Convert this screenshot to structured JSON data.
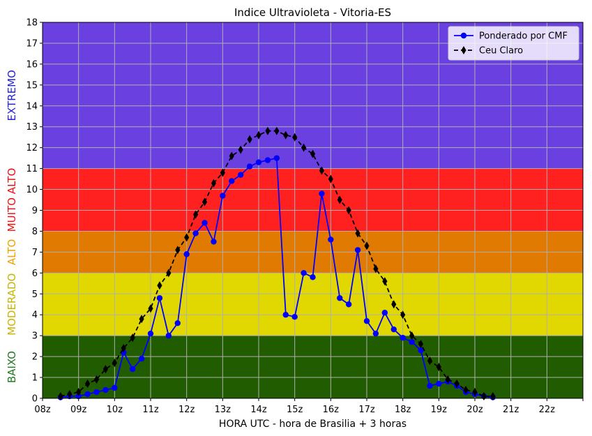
{
  "chart_data": {
    "type": "line",
    "title": "Indice Ultravioleta - Vitoria-ES",
    "xlabel": "HORA UTC - hora de Brasilia + 3 horas",
    "ylabel": "",
    "xlim": [
      8,
      23
    ],
    "ylim": [
      0,
      18
    ],
    "yticks": [
      0,
      1,
      2,
      3,
      4,
      5,
      6,
      7,
      8,
      9,
      10,
      11,
      12,
      13,
      14,
      15,
      16,
      17,
      18
    ],
    "xticks": [
      {
        "value": 8,
        "label": "08z"
      },
      {
        "value": 9,
        "label": "09z"
      },
      {
        "value": 10,
        "label": "10z"
      },
      {
        "value": 11,
        "label": "11z"
      },
      {
        "value": 12,
        "label": "12z"
      },
      {
        "value": 13,
        "label": "13z"
      },
      {
        "value": 14,
        "label": "14z"
      },
      {
        "value": 15,
        "label": "15z"
      },
      {
        "value": 16,
        "label": "16z"
      },
      {
        "value": 17,
        "label": "17z"
      },
      {
        "value": 18,
        "label": "18z"
      },
      {
        "value": 19,
        "label": "19z"
      },
      {
        "value": 20,
        "label": "20z"
      },
      {
        "value": 21,
        "label": "21z"
      },
      {
        "value": 22,
        "label": "22z"
      },
      {
        "value": 23,
        "label": ""
      }
    ],
    "grid": true,
    "legend_position": "top-right",
    "bands": [
      {
        "label": "BAIXO",
        "from": 0,
        "to": 3,
        "color": "#215c00",
        "text_color": "#1f7a1f"
      },
      {
        "label": "MODERADO",
        "from": 3,
        "to": 6,
        "color": "#e0d800",
        "text_color": "#c8b400"
      },
      {
        "label": "ALTO",
        "from": 6,
        "to": 8,
        "color": "#e07a00",
        "text_color": "#f0a000"
      },
      {
        "label": "MUITO ALTO",
        "from": 8,
        "to": 11,
        "color": "#ff2020",
        "text_color": "#ee1111"
      },
      {
        "label": "EXTREMO",
        "from": 11,
        "to": 18,
        "color": "#6a40e0",
        "text_color": "#2222dd"
      }
    ],
    "series": [
      {
        "name": "Ponderado por CMF",
        "color": "#0000ff",
        "marker": "circle",
        "line_style": "solid",
        "x": [
          8.5,
          8.75,
          9.0,
          9.25,
          9.5,
          9.75,
          10.0,
          10.25,
          10.5,
          10.75,
          11.0,
          11.25,
          11.5,
          11.75,
          12.0,
          12.25,
          12.5,
          12.75,
          13.0,
          13.25,
          13.5,
          13.75,
          14.0,
          14.25,
          14.5,
          14.75,
          15.0,
          15.25,
          15.5,
          15.75,
          16.0,
          16.25,
          16.5,
          16.75,
          17.0,
          17.25,
          17.5,
          17.75,
          18.0,
          18.25,
          18.5,
          18.75,
          19.0,
          19.25,
          19.5,
          19.75,
          20.0,
          20.25,
          20.5
        ],
        "y": [
          0.05,
          0.1,
          0.1,
          0.2,
          0.3,
          0.4,
          0.5,
          2.2,
          1.4,
          1.9,
          3.1,
          4.8,
          3.0,
          3.6,
          6.9,
          7.9,
          8.4,
          7.5,
          9.7,
          10.4,
          10.7,
          11.1,
          11.3,
          11.4,
          11.5,
          4.0,
          3.9,
          6.0,
          5.8,
          9.8,
          7.6,
          4.8,
          4.5,
          7.1,
          3.7,
          3.1,
          4.1,
          3.3,
          2.9,
          2.7,
          2.3,
          0.6,
          0.7,
          0.8,
          0.6,
          0.3,
          0.2,
          0.1,
          0.05
        ]
      },
      {
        "name": "Ceu Claro",
        "color": "#000000",
        "marker": "diamond",
        "line_style": "dashed",
        "x": [
          8.5,
          8.75,
          9.0,
          9.25,
          9.5,
          9.75,
          10.0,
          10.25,
          10.5,
          10.75,
          11.0,
          11.25,
          11.5,
          11.75,
          12.0,
          12.25,
          12.5,
          12.75,
          13.0,
          13.25,
          13.5,
          13.75,
          14.0,
          14.25,
          14.5,
          14.75,
          15.0,
          15.25,
          15.5,
          15.75,
          16.0,
          16.25,
          16.5,
          16.75,
          17.0,
          17.25,
          17.5,
          17.75,
          18.0,
          18.25,
          18.5,
          18.75,
          19.0,
          19.25,
          19.5,
          19.75,
          20.0,
          20.25,
          20.5
        ],
        "y": [
          0.1,
          0.2,
          0.3,
          0.7,
          0.9,
          1.4,
          1.7,
          2.4,
          2.9,
          3.8,
          4.3,
          5.4,
          6.0,
          7.1,
          7.7,
          8.8,
          9.4,
          10.3,
          10.8,
          11.6,
          11.9,
          12.4,
          12.6,
          12.8,
          12.8,
          12.6,
          12.5,
          12.0,
          11.7,
          10.9,
          10.5,
          9.5,
          9.0,
          7.9,
          7.3,
          6.2,
          5.6,
          4.5,
          4.0,
          3.0,
          2.6,
          1.8,
          1.5,
          0.9,
          0.7,
          0.4,
          0.3,
          0.1,
          0.1
        ]
      }
    ]
  }
}
